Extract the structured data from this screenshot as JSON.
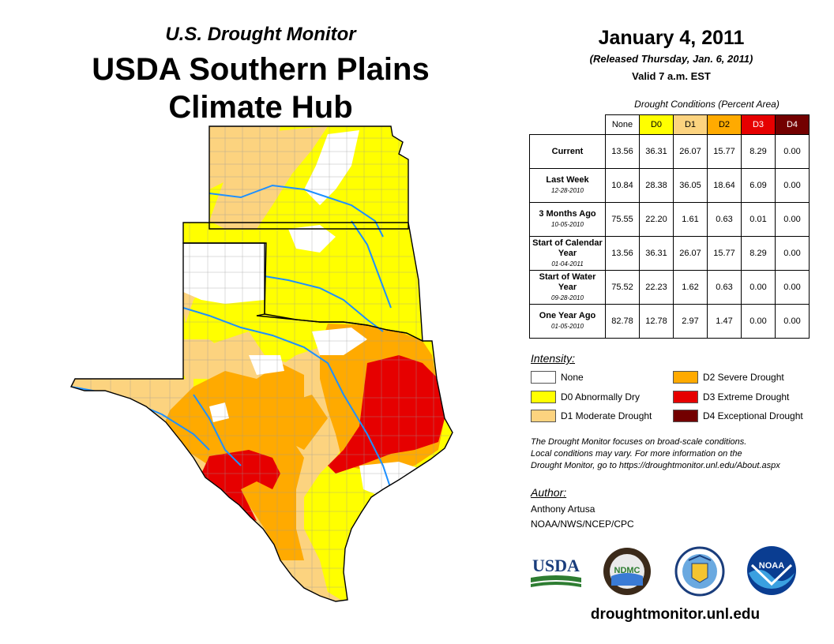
{
  "header": {
    "subtitle": "U.S. Drought Monitor",
    "title_line1": "USDA Southern Plains",
    "title_line2": "Climate Hub"
  },
  "dates": {
    "date": "January 4, 2011",
    "released": "(Released Thursday, Jan. 6, 2011)",
    "valid": "Valid 7 a.m. EST"
  },
  "table": {
    "title": "Drought Conditions (Percent Area)",
    "columns": [
      "None",
      "D0",
      "D1",
      "D2",
      "D3",
      "D4"
    ],
    "rows": [
      {
        "label": "Current",
        "sub": "",
        "values": [
          "13.56",
          "36.31",
          "26.07",
          "15.77",
          "8.29",
          "0.00"
        ]
      },
      {
        "label": "Last Week",
        "sub": "12-28-2010",
        "values": [
          "10.84",
          "28.38",
          "36.05",
          "18.64",
          "6.09",
          "0.00"
        ]
      },
      {
        "label": "3 Months Ago",
        "sub": "10-05-2010",
        "values": [
          "75.55",
          "22.20",
          "1.61",
          "0.63",
          "0.01",
          "0.00"
        ]
      },
      {
        "label": "Start of Calendar Year",
        "sub": "01-04-2011",
        "values": [
          "13.56",
          "36.31",
          "26.07",
          "15.77",
          "8.29",
          "0.00"
        ]
      },
      {
        "label": "Start of Water Year",
        "sub": "09-28-2010",
        "values": [
          "75.52",
          "22.23",
          "1.62",
          "0.63",
          "0.00",
          "0.00"
        ]
      },
      {
        "label": "One Year Ago",
        "sub": "01-05-2010",
        "values": [
          "82.78",
          "12.78",
          "2.97",
          "1.47",
          "0.00",
          "0.00"
        ]
      }
    ]
  },
  "legend": {
    "title": "Intensity:",
    "items": [
      {
        "label": "None",
        "color": "#ffffff"
      },
      {
        "label": "D0 Abnormally Dry",
        "color": "#ffff00"
      },
      {
        "label": "D1 Moderate Drought",
        "color": "#fcd37f"
      },
      {
        "label": "D2 Severe Drought",
        "color": "#ffaa00"
      },
      {
        "label": "D3 Extreme Drought",
        "color": "#e60000"
      },
      {
        "label": "D4 Exceptional Drought",
        "color": "#730000"
      }
    ]
  },
  "note": {
    "line1": "The Drought Monitor focuses on broad-scale conditions.",
    "line2": "Local conditions may vary. For more information on the",
    "line3": "Drought Monitor, go to https://droughtmonitor.unl.edu/About.aspx"
  },
  "author": {
    "heading": "Author:",
    "name": "Anthony Artusa",
    "org": "NOAA/NWS/NCEP/CPC"
  },
  "logos": {
    "usda": "USDA",
    "ndmc": "NDMC",
    "noaa": "NOAA",
    "doc": "doc-seal-icon"
  },
  "footer": {
    "site": "droughtmonitor.unl.edu"
  },
  "colors": {
    "d3": "#e60000",
    "d2": "#ffaa00",
    "d1": "#fcd37f",
    "d0": "#ffff00",
    "river": "#1e90ff"
  }
}
